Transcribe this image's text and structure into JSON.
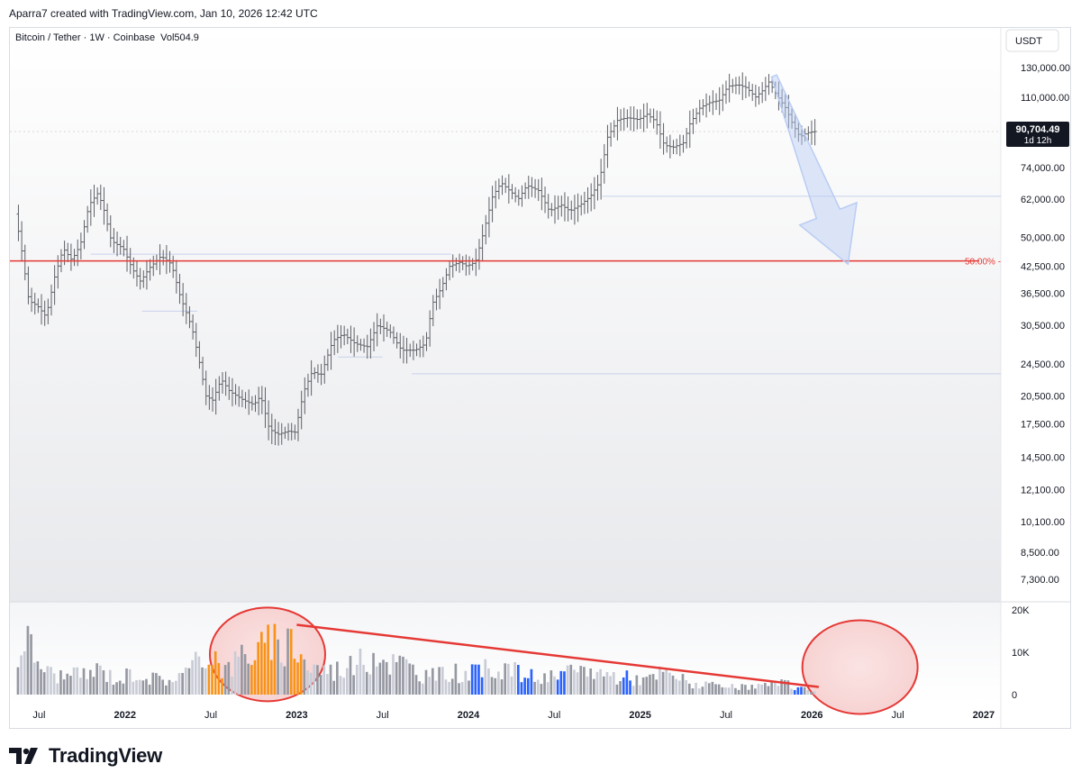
{
  "header": {
    "attribution": "Aparra7 created with TradingView.com, Jan 10, 2026 12:42 UTC"
  },
  "legend": {
    "symbol": "Bitcoin / Tether · 1W · Coinbase",
    "volume": "Vol504.9"
  },
  "currency_badge": "USDT",
  "price_badge": {
    "price": "90,704.49",
    "countdown": "1d 12h"
  },
  "fib_label": "50.00%",
  "brand": "TradingView",
  "icons": {
    "logo": "tradingview-logo-icon"
  },
  "colors": {
    "accent_red": "#e53935",
    "arrow_blue": "#b9ccf3",
    "candle": "#5d6066",
    "vol_gray": "#9598a1",
    "vol_light": "#c9ccd6",
    "vol_orange": "#f7931a",
    "vol_blue": "#2962ff"
  },
  "chart_data": {
    "type": "candlestick",
    "title": "",
    "price_scale": "log",
    "y_ticks": [
      "130,000.00",
      "110,000.00",
      "74,000.00",
      "62,000.00",
      "50,000.00",
      "42,500.00",
      "36,500.00",
      "30,500.00",
      "24,500.00",
      "20,500.00",
      "17,500.00",
      "14,500.00",
      "12,100.00",
      "10,100.00",
      "8,500.00",
      "7,300.00"
    ],
    "y_tick_values": [
      130000,
      110000,
      74000,
      62000,
      50000,
      42500,
      36500,
      30500,
      24500,
      20500,
      17500,
      14500,
      12100,
      10100,
      8500,
      7300
    ],
    "x_ticks": [
      "Jul",
      "2022",
      "Jul",
      "2023",
      "Jul",
      "2024",
      "Jul",
      "2025",
      "Jul",
      "2026",
      "Jul",
      "2027"
    ],
    "x_tick_dates": [
      2021.5,
      2022.0,
      2022.5,
      2023.0,
      2023.5,
      2024.0,
      2024.5,
      2025.0,
      2025.5,
      2026.0,
      2026.5,
      2027.0
    ],
    "x_range": [
      2021.33,
      2027.1
    ],
    "price_path": [
      [
        2021.37,
        57000
      ],
      [
        2021.4,
        49000
      ],
      [
        2021.45,
        35000
      ],
      [
        2021.5,
        34000
      ],
      [
        2021.55,
        32000
      ],
      [
        2021.6,
        40000
      ],
      [
        2021.65,
        47000
      ],
      [
        2021.7,
        44000
      ],
      [
        2021.75,
        48000
      ],
      [
        2021.8,
        60000
      ],
      [
        2021.85,
        64000
      ],
      [
        2021.88,
        60000
      ],
      [
        2021.93,
        49000
      ],
      [
        2022.0,
        47000
      ],
      [
        2022.05,
        42000
      ],
      [
        2022.1,
        39000
      ],
      [
        2022.15,
        42000
      ],
      [
        2022.22,
        45000
      ],
      [
        2022.28,
        43000
      ],
      [
        2022.33,
        36000
      ],
      [
        2022.4,
        30000
      ],
      [
        2022.45,
        24000
      ],
      [
        2022.48,
        20500
      ],
      [
        2022.52,
        20000
      ],
      [
        2022.57,
        22500
      ],
      [
        2022.62,
        21000
      ],
      [
        2022.7,
        20000
      ],
      [
        2022.76,
        19500
      ],
      [
        2022.8,
        20500
      ],
      [
        2022.85,
        17000
      ],
      [
        2022.9,
        16500
      ],
      [
        2022.96,
        16800
      ],
      [
        2023.0,
        16700
      ],
      [
        2023.05,
        21000
      ],
      [
        2023.1,
        23500
      ],
      [
        2023.15,
        23000
      ],
      [
        2023.22,
        28000
      ],
      [
        2023.28,
        29000
      ],
      [
        2023.35,
        27500
      ],
      [
        2023.42,
        27000
      ],
      [
        2023.48,
        30500
      ],
      [
        2023.55,
        29500
      ],
      [
        2023.62,
        26500
      ],
      [
        2023.7,
        26500
      ],
      [
        2023.76,
        27500
      ],
      [
        2023.8,
        34500
      ],
      [
        2023.85,
        37500
      ],
      [
        2023.9,
        42500
      ],
      [
        2023.96,
        43500
      ],
      [
        2024.0,
        42500
      ],
      [
        2024.05,
        43500
      ],
      [
        2024.1,
        52000
      ],
      [
        2024.15,
        63000
      ],
      [
        2024.2,
        68000
      ],
      [
        2024.25,
        65000
      ],
      [
        2024.3,
        62000
      ],
      [
        2024.35,
        67000
      ],
      [
        2024.42,
        65000
      ],
      [
        2024.48,
        58000
      ],
      [
        2024.55,
        60000
      ],
      [
        2024.6,
        58000
      ],
      [
        2024.66,
        60000
      ],
      [
        2024.72,
        63000
      ],
      [
        2024.77,
        68000
      ],
      [
        2024.82,
        88000
      ],
      [
        2024.88,
        97000
      ],
      [
        2024.94,
        98000
      ],
      [
        2025.0,
        97000
      ],
      [
        2025.05,
        100000
      ],
      [
        2025.1,
        96000
      ],
      [
        2025.15,
        84000
      ],
      [
        2025.2,
        83000
      ],
      [
        2025.26,
        85000
      ],
      [
        2025.3,
        95000
      ],
      [
        2025.36,
        104000
      ],
      [
        2025.42,
        107000
      ],
      [
        2025.47,
        108000
      ],
      [
        2025.52,
        117000
      ],
      [
        2025.58,
        118000
      ],
      [
        2025.63,
        116000
      ],
      [
        2025.68,
        110000
      ],
      [
        2025.72,
        114000
      ],
      [
        2025.76,
        120000
      ],
      [
        2025.8,
        112000
      ],
      [
        2025.86,
        103000
      ],
      [
        2025.9,
        94000
      ],
      [
        2025.94,
        88000
      ],
      [
        2025.98,
        90000
      ],
      [
        2026.02,
        90704
      ]
    ],
    "volume_scale": {
      "ticks": [
        "20K",
        "10K",
        "0"
      ],
      "tick_values": [
        20000,
        10000,
        0
      ],
      "max": 20000
    },
    "volume_path": [
      [
        2021.37,
        8000
      ],
      [
        2021.4,
        19000
      ],
      [
        2021.45,
        12000
      ],
      [
        2021.55,
        6000
      ],
      [
        2021.65,
        5000
      ],
      [
        2021.75,
        5500
      ],
      [
        2021.85,
        7000
      ],
      [
        2021.95,
        4000
      ],
      [
        2022.05,
        6500
      ],
      [
        2022.15,
        4500
      ],
      [
        2022.25,
        4200
      ],
      [
        2022.35,
        6000
      ],
      [
        2022.42,
        9000
      ],
      [
        2022.48,
        12500
      ],
      [
        2022.52,
        11000
      ],
      [
        2022.58,
        6500
      ],
      [
        2022.65,
        9500
      ],
      [
        2022.7,
        14000
      ],
      [
        2022.75,
        10000
      ],
      [
        2022.8,
        13500
      ],
      [
        2022.85,
        14500
      ],
      [
        2022.9,
        11000
      ],
      [
        2022.96,
        16500
      ],
      [
        2023.0,
        13000
      ],
      [
        2023.05,
        8000
      ],
      [
        2023.1,
        7500
      ],
      [
        2023.2,
        6500
      ],
      [
        2023.28,
        8000
      ],
      [
        2023.35,
        9000
      ],
      [
        2023.4,
        8500
      ],
      [
        2023.45,
        13000
      ],
      [
        2023.5,
        10000
      ],
      [
        2023.55,
        9000
      ],
      [
        2023.62,
        8500
      ],
      [
        2023.7,
        6000
      ],
      [
        2023.8,
        5000
      ],
      [
        2023.9,
        6500
      ],
      [
        2023.98,
        5500
      ],
      [
        2024.05,
        6000
      ],
      [
        2024.12,
        7500
      ],
      [
        2024.2,
        8000
      ],
      [
        2024.28,
        6000
      ],
      [
        2024.36,
        5000
      ],
      [
        2024.44,
        4500
      ],
      [
        2024.52,
        5000
      ],
      [
        2024.6,
        6000
      ],
      [
        2024.7,
        7000
      ],
      [
        2024.8,
        5500
      ],
      [
        2024.88,
        5000
      ],
      [
        2024.96,
        4500
      ],
      [
        2025.04,
        4000
      ],
      [
        2025.12,
        6000
      ],
      [
        2025.2,
        5000
      ],
      [
        2025.3,
        3000
      ],
      [
        2025.4,
        2500
      ],
      [
        2025.5,
        2000
      ],
      [
        2025.6,
        2000
      ],
      [
        2025.7,
        2500
      ],
      [
        2025.78,
        2800
      ],
      [
        2025.84,
        3000
      ],
      [
        2025.9,
        2000
      ],
      [
        2025.96,
        1500
      ],
      [
        2026.02,
        800
      ]
    ],
    "volume_orange_range": [
      [
        2022.48,
        2022.56
      ],
      [
        2022.72,
        2022.88
      ],
      [
        2022.95,
        2023.02
      ]
    ],
    "volume_blue_range": [
      [
        2024.0,
        2024.08
      ],
      [
        2024.28,
        2024.36
      ],
      [
        2024.5,
        2024.56
      ],
      [
        2024.88,
        2024.94
      ],
      [
        2025.88,
        2025.94
      ]
    ],
    "fib_level": 43800,
    "support_lines": [
      {
        "price": 63000,
        "from": 2024.78,
        "to": 2027.1
      },
      {
        "price": 23200,
        "from": 2023.67,
        "to": 2027.1
      },
      {
        "price": 45500,
        "from": 2021.8,
        "to": 2023.9
      },
      {
        "price": 33000,
        "from": 2022.1,
        "to": 2022.42
      },
      {
        "price": 25500,
        "from": 2023.24,
        "to": 2023.5
      }
    ],
    "projection_arrow": {
      "from": [
        2025.78,
        124000
      ],
      "to": [
        2026.21,
        43000
      ]
    },
    "volume_trendline": {
      "from": [
        2023.0,
        16500
      ],
      "to": [
        2026.04,
        1800
      ]
    },
    "volume_circles": [
      {
        "center": [
          2022.83,
          9500
        ]
      },
      {
        "center": [
          2026.28,
          6500
        ]
      }
    ]
  }
}
